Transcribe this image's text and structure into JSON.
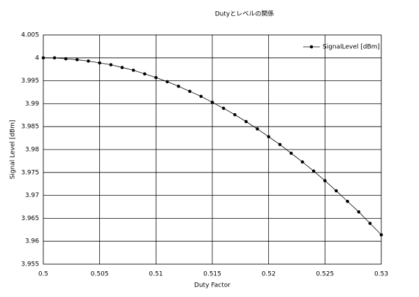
{
  "chart_data": {
    "type": "line",
    "title": "Dutyとレベルの関係",
    "xlabel": "Duty Factor",
    "ylabel": "Signal Level [dBm]",
    "x": [
      0.5,
      0.501,
      0.502,
      0.503,
      0.504,
      0.505,
      0.506,
      0.507,
      0.508,
      0.509,
      0.51,
      0.511,
      0.512,
      0.513,
      0.514,
      0.515,
      0.516,
      0.517,
      0.518,
      0.519,
      0.52,
      0.521,
      0.522,
      0.523,
      0.524,
      0.525,
      0.526,
      0.527,
      0.528,
      0.529,
      0.53
    ],
    "series": [
      {
        "name": "SignalLevel [dBm]",
        "color": "#000000",
        "values": [
          4.0,
          4.0,
          3.9998,
          3.9996,
          3.9993,
          3.9989,
          3.9985,
          3.9979,
          3.9973,
          3.9965,
          3.9957,
          3.9948,
          3.9938,
          3.9927,
          3.9916,
          3.9903,
          3.989,
          3.9876,
          3.9861,
          3.9845,
          3.9828,
          3.9811,
          3.9792,
          3.9773,
          3.9753,
          3.9732,
          3.971,
          3.9687,
          3.9664,
          3.9639,
          3.9614
        ]
      }
    ],
    "xlim": [
      0.5,
      0.53
    ],
    "xticks": [
      0.5,
      0.505,
      0.51,
      0.515,
      0.52,
      0.525,
      0.53
    ],
    "ylim": [
      3.955,
      4.005
    ],
    "yticks": [
      3.955,
      3.96,
      3.965,
      3.97,
      3.975,
      3.98,
      3.985,
      3.99,
      3.995,
      4,
      4.005
    ],
    "grid": true,
    "legend": "upper-right"
  }
}
